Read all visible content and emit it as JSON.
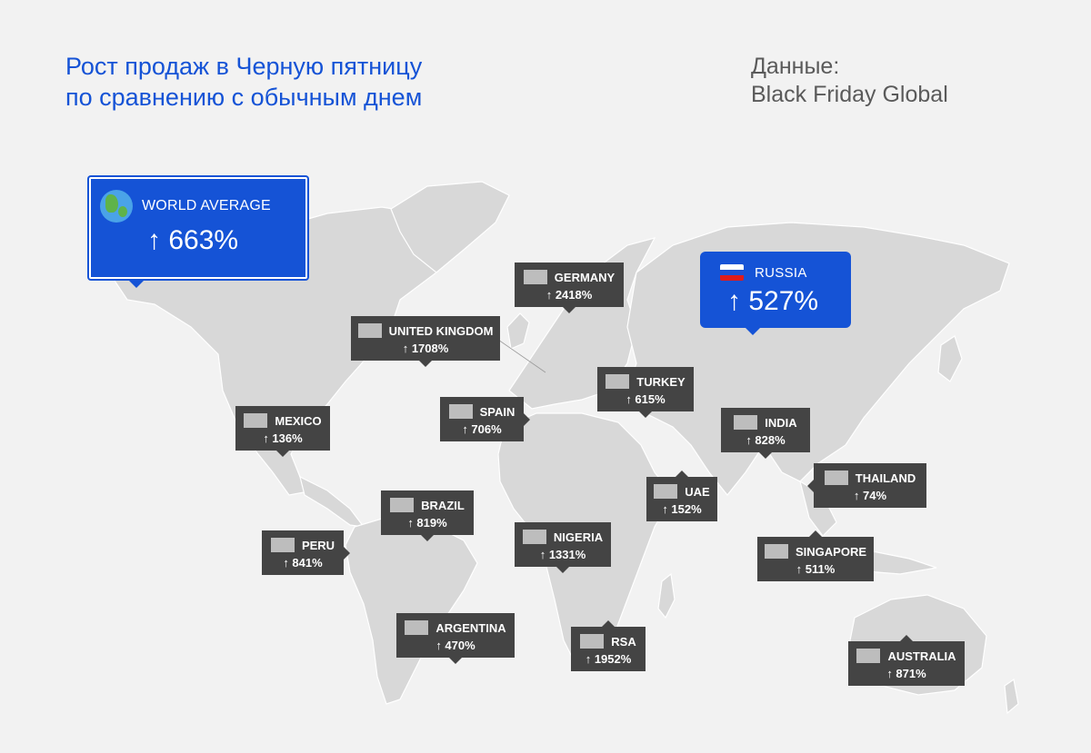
{
  "title": {
    "line1": "Рост продаж в Черную пятницу",
    "line2": "по сравнению с обычным днем"
  },
  "source": {
    "line1": "Данные:",
    "line2": "Black Friday Global"
  },
  "colors": {
    "accent": "#1553d6",
    "label_bg": "#444444",
    "land": "#d8d8d8",
    "background": "#f2f2f2"
  },
  "highlights": {
    "world": {
      "label": "WORLD AVERAGE",
      "value": "↑ 663%",
      "icon": "globe-icon"
    },
    "russia": {
      "label": "RUSSIA",
      "value": "↑ 527%",
      "icon": "russia-flag-icon"
    }
  },
  "countries": [
    {
      "name": "GERMANY",
      "value": "↑ 2418%"
    },
    {
      "name": "UNITED KINGDOM",
      "value": "↑ 1708%"
    },
    {
      "name": "TURKEY",
      "value": "↑ 615%"
    },
    {
      "name": "SPAIN",
      "value": "↑ 706%"
    },
    {
      "name": "MEXICO",
      "value": "↑ 136%"
    },
    {
      "name": "INDIA",
      "value": "↑ 828%"
    },
    {
      "name": "THAILAND",
      "value": "↑ 74%"
    },
    {
      "name": "UAE",
      "value": "↑ 152%"
    },
    {
      "name": "BRAZIL",
      "value": "↑ 819%"
    },
    {
      "name": "PERU",
      "value": "↑ 841%"
    },
    {
      "name": "NIGERIA",
      "value": "↑ 1331%"
    },
    {
      "name": "SINGAPORE",
      "value": "↑ 511%"
    },
    {
      "name": "ARGENTINA",
      "value": "↑ 470%"
    },
    {
      "name": "RSA",
      "value": "↑ 1952%"
    },
    {
      "name": "AUSTRALIA",
      "value": "↑ 871%"
    }
  ]
}
